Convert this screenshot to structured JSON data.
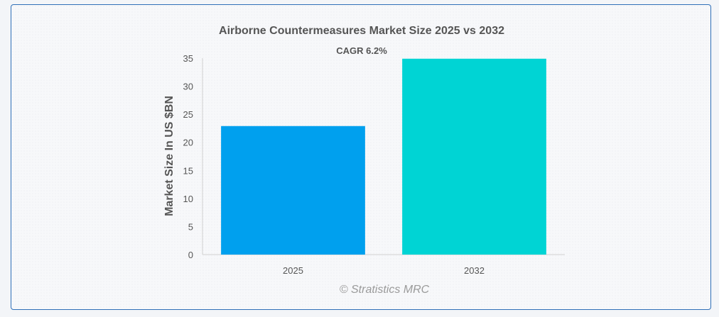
{
  "chart_data": {
    "type": "bar",
    "title": "Airborne Countermeasures Market Size 2025 vs 2032",
    "annotation": "CAGR 6.2%",
    "categories": [
      "2025",
      "2032"
    ],
    "values": [
      22.9,
      34.9
    ],
    "xlabel": "",
    "ylabel": "Market Size In US $BN",
    "ylim": [
      0,
      35
    ],
    "yticks": [
      0,
      5,
      10,
      15,
      20,
      25,
      30,
      35
    ],
    "colors": [
      "#00a0ee",
      "#00d4d4"
    ],
    "grid": false,
    "legend": "none",
    "credit": "© Stratistics MRC"
  }
}
